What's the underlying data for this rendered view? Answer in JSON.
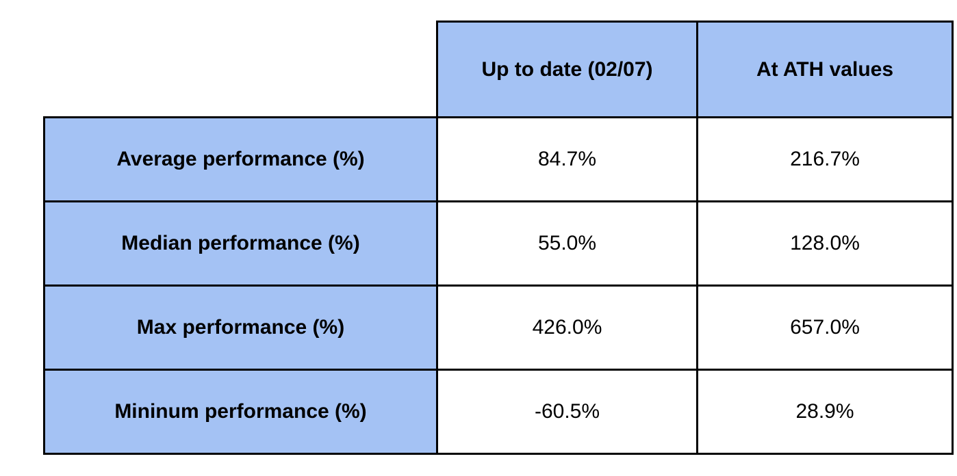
{
  "table": {
    "corner_label": "",
    "columns": [
      "Up to date (02/07)",
      "At ATH values"
    ],
    "rows": [
      {
        "label": "Average performance (%)",
        "values": [
          "84.7%",
          "216.7%"
        ]
      },
      {
        "label": "Median performance (%)",
        "values": [
          "55.0%",
          "128.0%"
        ]
      },
      {
        "label": "Max performance (%)",
        "values": [
          "426.0%",
          "657.0%"
        ]
      },
      {
        "label": "Mininum performance (%)",
        "values": [
          "-60.5%",
          "28.9%"
        ]
      }
    ],
    "colors": {
      "page_background": "#ffffff",
      "header_fill": "#a4c2f4",
      "cell_fill": "#ffffff",
      "border": "#000000",
      "text": "#000000"
    }
  }
}
